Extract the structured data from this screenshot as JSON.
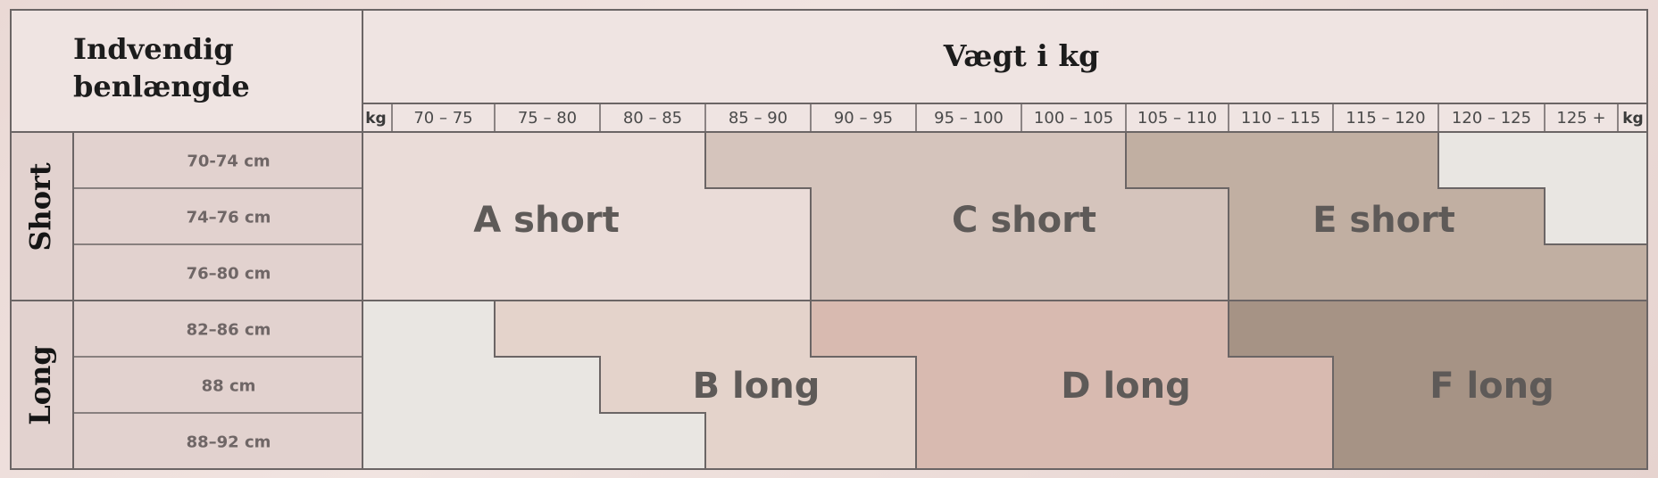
{
  "table": {
    "leg_length_title": [
      "Indvendig",
      "benlængde"
    ],
    "weight_title": "Vægt i kg",
    "kg_left": "kg",
    "kg_right": "kg",
    "weight_ranges": [
      "70 – 75",
      "75 – 80",
      "80 – 85",
      "85 – 90",
      "90 – 95",
      "95 – 100",
      "100 – 105",
      "105 – 110",
      "110 – 115",
      "115 – 120",
      "120 – 125",
      "125 +"
    ],
    "groups": [
      {
        "label": "Short",
        "rows": [
          "70-74 cm",
          "74–76 cm",
          "76–80 cm"
        ]
      },
      {
        "label": "Long",
        "rows": [
          "82–86 cm",
          "88 cm",
          "88–92 cm"
        ]
      }
    ],
    "zones": [
      {
        "label": "A short",
        "color": "#eadcd8"
      },
      {
        "label": "C short",
        "color": "#d5c4bc"
      },
      {
        "label": "E short",
        "color": "#c1afa2"
      },
      {
        "label": "B long",
        "color": "#e4d3cb"
      },
      {
        "label": "D long",
        "color": "#d8bab0"
      },
      {
        "label": "F long",
        "color": "#a69385"
      }
    ],
    "blank_color": "#e9e6e2",
    "header_color": "#efe4e2",
    "label_color": "#e2d2cf"
  }
}
